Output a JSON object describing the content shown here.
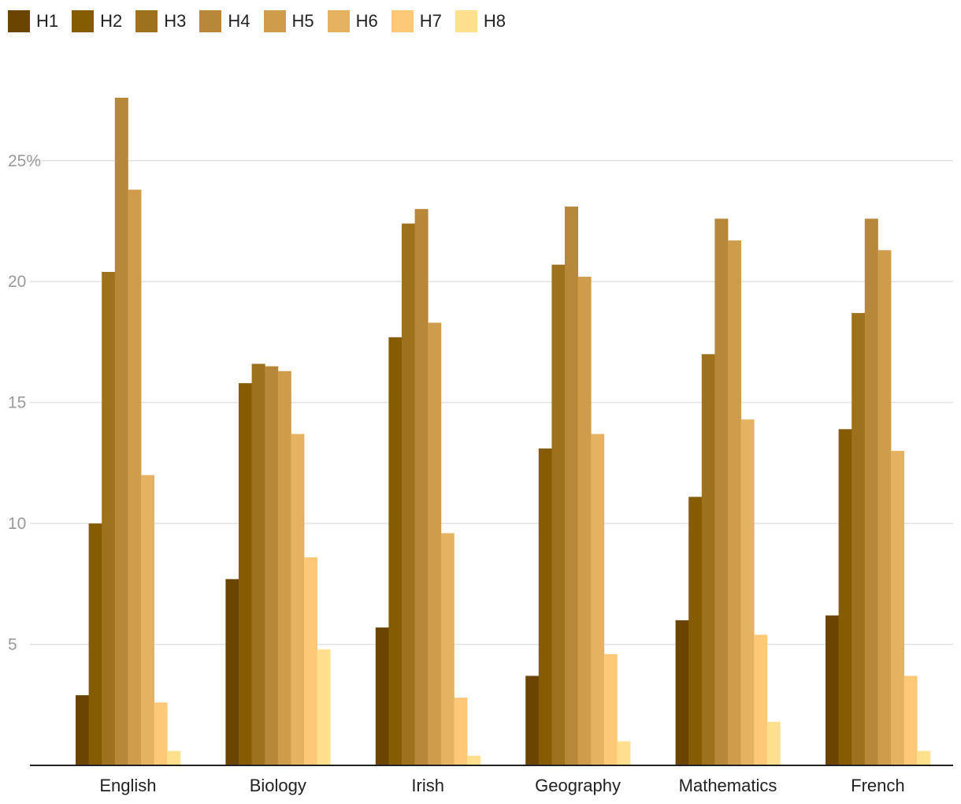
{
  "chart_data": {
    "type": "bar",
    "title": "",
    "xlabel": "",
    "ylabel": "",
    "categories": [
      "English",
      "Biology",
      "Irish",
      "Geography",
      "Mathematics",
      "French"
    ],
    "series": [
      {
        "name": "H1",
        "color": "#6b4500",
        "values": [
          2.9,
          7.7,
          5.7,
          3.7,
          6.0,
          6.2
        ]
      },
      {
        "name": "H2",
        "color": "#855c02",
        "values": [
          10.0,
          15.8,
          17.7,
          13.1,
          11.1,
          13.9
        ]
      },
      {
        "name": "H3",
        "color": "#9e711d",
        "values": [
          20.4,
          16.6,
          22.4,
          20.7,
          17.0,
          18.7
        ]
      },
      {
        "name": "H4",
        "color": "#b7873a",
        "values": [
          27.6,
          16.5,
          23.0,
          23.1,
          22.6,
          22.6
        ]
      },
      {
        "name": "H5",
        "color": "#cf9c4c",
        "values": [
          23.8,
          16.3,
          18.3,
          20.2,
          21.7,
          21.3
        ]
      },
      {
        "name": "H6",
        "color": "#e5b262",
        "values": [
          12.0,
          13.7,
          9.6,
          13.7,
          14.3,
          13.0
        ]
      },
      {
        "name": "H7",
        "color": "#fdc979",
        "values": [
          2.6,
          8.6,
          2.8,
          4.6,
          5.4,
          3.7
        ]
      },
      {
        "name": "H8",
        "color": "#ffe08f",
        "values": [
          0.6,
          4.8,
          0.4,
          1.0,
          1.8,
          0.6
        ]
      }
    ],
    "ylim": [
      0,
      27.6
    ],
    "yticks": [
      {
        "value": 5,
        "label": "5"
      },
      {
        "value": 10,
        "label": "10"
      },
      {
        "value": 15,
        "label": "15"
      },
      {
        "value": 20,
        "label": "20"
      },
      {
        "value": 25,
        "label": "25%"
      }
    ],
    "grid": true,
    "legend_position": "top-left",
    "colors": {
      "grid": "#e2e2e2",
      "axis": "#222222",
      "tick_label": "#9a9a9a"
    }
  }
}
